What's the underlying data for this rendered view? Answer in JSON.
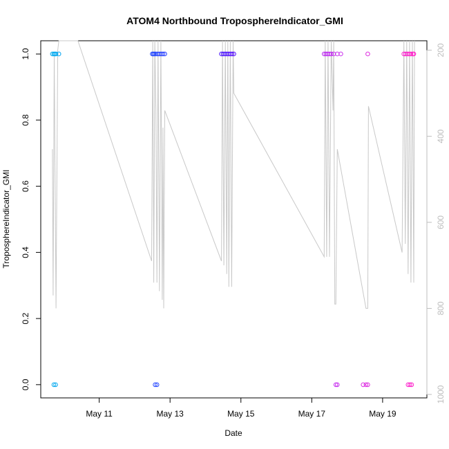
{
  "chart_data": {
    "type": "scatter",
    "title": "ATOM4 Northbound TroposphereIndicator_GMI",
    "xlabel": "Date",
    "ylabel": "TroposphereIndicator_GMI",
    "x_tick_labels": [
      "May 11",
      "May 13",
      "May 15",
      "May 17",
      "May 19"
    ],
    "x_tick_values": [
      11,
      13,
      15,
      17,
      19
    ],
    "xlim": [
      9.35,
      20.25
    ],
    "ylim": [
      -0.04,
      1.04
    ],
    "y_ticks": [
      0.0,
      0.2,
      0.4,
      0.6,
      0.8,
      1.0
    ],
    "y_tick_labels": [
      "0.0",
      "0.2",
      "0.4",
      "0.6",
      "0.8",
      "1.0"
    ],
    "y2_ticks": [
      200,
      400,
      600,
      800,
      1000
    ],
    "y2_tick_labels": [
      "200",
      "400",
      "600",
      "800",
      "1000"
    ],
    "y2lim": [
      1008,
      178
    ],
    "grid": false,
    "legend": "none",
    "colors": {
      "line": "#c8c8c8",
      "right_axis": "#bdbdbd",
      "point_palette": [
        "#00aaee",
        "#1e64ff",
        "#2b1eff",
        "#8000ff",
        "#cc33ee",
        "#ff1ec8"
      ]
    },
    "points": [
      {
        "x": 9.68,
        "y": 1
      },
      {
        "x": 9.72,
        "y": 1
      },
      {
        "x": 9.75,
        "y": 1
      },
      {
        "x": 9.78,
        "y": 1
      },
      {
        "x": 9.86,
        "y": 1
      },
      {
        "x": 9.72,
        "y": 0
      },
      {
        "x": 9.77,
        "y": 0
      },
      {
        "x": 12.5,
        "y": 1
      },
      {
        "x": 12.53,
        "y": 1
      },
      {
        "x": 12.56,
        "y": 1
      },
      {
        "x": 12.6,
        "y": 1
      },
      {
        "x": 12.65,
        "y": 1
      },
      {
        "x": 12.7,
        "y": 1
      },
      {
        "x": 12.75,
        "y": 1
      },
      {
        "x": 12.8,
        "y": 1
      },
      {
        "x": 12.85,
        "y": 1
      },
      {
        "x": 12.58,
        "y": 0
      },
      {
        "x": 12.63,
        "y": 0
      },
      {
        "x": 14.45,
        "y": 1
      },
      {
        "x": 14.5,
        "y": 1
      },
      {
        "x": 14.55,
        "y": 1
      },
      {
        "x": 14.6,
        "y": 1
      },
      {
        "x": 14.65,
        "y": 1
      },
      {
        "x": 14.7,
        "y": 1
      },
      {
        "x": 14.75,
        "y": 1
      },
      {
        "x": 14.8,
        "y": 1
      },
      {
        "x": 17.35,
        "y": 1
      },
      {
        "x": 17.4,
        "y": 1
      },
      {
        "x": 17.45,
        "y": 1
      },
      {
        "x": 17.5,
        "y": 1
      },
      {
        "x": 17.55,
        "y": 1
      },
      {
        "x": 17.62,
        "y": 1
      },
      {
        "x": 17.72,
        "y": 1
      },
      {
        "x": 17.82,
        "y": 1
      },
      {
        "x": 17.68,
        "y": 0
      },
      {
        "x": 17.72,
        "y": 0
      },
      {
        "x": 18.58,
        "y": 1
      },
      {
        "x": 18.45,
        "y": 0
      },
      {
        "x": 18.53,
        "y": 0
      },
      {
        "x": 18.58,
        "y": 0
      },
      {
        "x": 19.6,
        "y": 1
      },
      {
        "x": 19.65,
        "y": 1
      },
      {
        "x": 19.7,
        "y": 1
      },
      {
        "x": 19.75,
        "y": 1
      },
      {
        "x": 19.8,
        "y": 1
      },
      {
        "x": 19.85,
        "y": 1
      },
      {
        "x": 19.88,
        "y": 1
      },
      {
        "x": 19.72,
        "y": 0
      },
      {
        "x": 19.77,
        "y": 0
      },
      {
        "x": 19.82,
        "y": 0
      }
    ],
    "pressure_line": [
      {
        "x": 9.68,
        "y2": 430
      },
      {
        "x": 9.7,
        "y2": 770
      },
      {
        "x": 9.73,
        "y2": 210
      },
      {
        "x": 9.78,
        "y2": 800
      },
      {
        "x": 9.83,
        "y2": 200
      },
      {
        "x": 9.86,
        "y2": 178
      },
      {
        "x": 10.4,
        "y2": 178
      },
      {
        "x": 12.48,
        "y2": 690
      },
      {
        "x": 12.51,
        "y2": 178
      },
      {
        "x": 12.54,
        "y2": 740
      },
      {
        "x": 12.57,
        "y2": 178
      },
      {
        "x": 12.6,
        "y2": 340
      },
      {
        "x": 12.63,
        "y2": 740
      },
      {
        "x": 12.66,
        "y2": 178
      },
      {
        "x": 12.7,
        "y2": 760
      },
      {
        "x": 12.74,
        "y2": 178
      },
      {
        "x": 12.78,
        "y2": 780
      },
      {
        "x": 12.8,
        "y2": 380
      },
      {
        "x": 12.82,
        "y2": 800
      },
      {
        "x": 12.85,
        "y2": 340
      },
      {
        "x": 14.45,
        "y2": 690
      },
      {
        "x": 14.48,
        "y2": 178
      },
      {
        "x": 14.52,
        "y2": 700
      },
      {
        "x": 14.56,
        "y2": 178
      },
      {
        "x": 14.6,
        "y2": 720
      },
      {
        "x": 14.63,
        "y2": 178
      },
      {
        "x": 14.66,
        "y2": 750
      },
      {
        "x": 14.7,
        "y2": 178
      },
      {
        "x": 14.74,
        "y2": 750
      },
      {
        "x": 14.78,
        "y2": 178
      },
      {
        "x": 14.8,
        "y2": 300
      },
      {
        "x": 17.35,
        "y2": 680
      },
      {
        "x": 17.38,
        "y2": 178
      },
      {
        "x": 17.42,
        "y2": 680
      },
      {
        "x": 17.46,
        "y2": 178
      },
      {
        "x": 17.5,
        "y2": 680
      },
      {
        "x": 17.55,
        "y2": 178
      },
      {
        "x": 17.6,
        "y2": 340
      },
      {
        "x": 17.62,
        "y2": 178
      },
      {
        "x": 17.65,
        "y2": 790
      },
      {
        "x": 17.68,
        "y2": 790
      },
      {
        "x": 17.72,
        "y2": 430
      },
      {
        "x": 18.53,
        "y2": 800
      },
      {
        "x": 18.58,
        "y2": 800
      },
      {
        "x": 18.6,
        "y2": 330
      },
      {
        "x": 19.55,
        "y2": 670
      },
      {
        "x": 19.6,
        "y2": 178
      },
      {
        "x": 19.64,
        "y2": 650
      },
      {
        "x": 19.68,
        "y2": 178
      },
      {
        "x": 19.72,
        "y2": 720
      },
      {
        "x": 19.76,
        "y2": 178
      },
      {
        "x": 19.8,
        "y2": 740
      },
      {
        "x": 19.84,
        "y2": 178
      },
      {
        "x": 19.88,
        "y2": 740
      },
      {
        "x": 19.9,
        "y2": 178
      }
    ]
  }
}
